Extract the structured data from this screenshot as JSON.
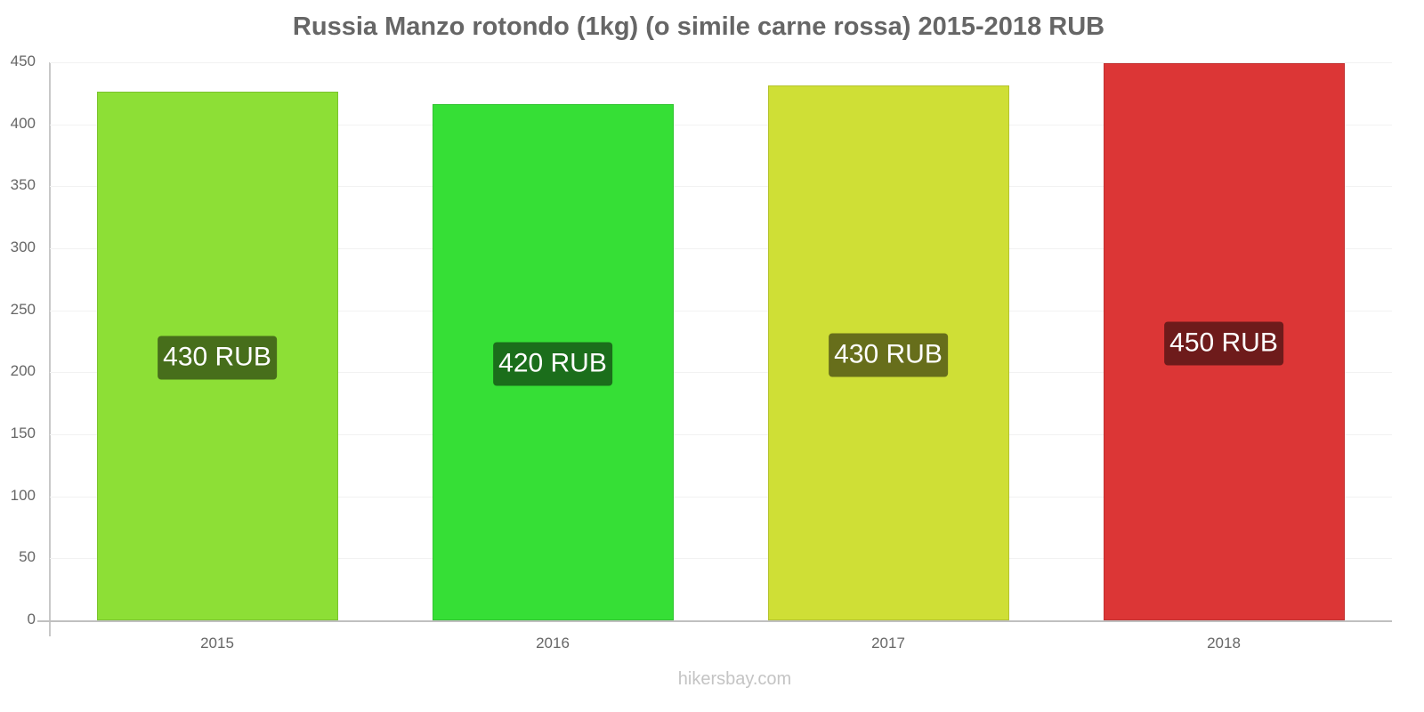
{
  "title": "Russia Manzo rotondo (1kg) (o simile carne rossa) 2015-2018 RUB",
  "footer": "hikersbay.com",
  "y_ticks": [
    "0",
    "50",
    "100",
    "150",
    "200",
    "250",
    "300",
    "350",
    "400",
    "450"
  ],
  "x_ticks": [
    "2015",
    "2016",
    "2017",
    "2018"
  ],
  "bars": [
    {
      "year": "2015",
      "label": "430 RUB",
      "color": "#8ddf36",
      "label_bg": "#476e1b"
    },
    {
      "year": "2016",
      "label": "420 RUB",
      "color": "#36df36",
      "label_bg": "#1b6e1b"
    },
    {
      "year": "2017",
      "label": "430 RUB",
      "color": "#cfdf36",
      "label_bg": "#676e1b"
    },
    {
      "year": "2018",
      "label": "450 RUB",
      "color": "#dc3636",
      "label_bg": "#6e1b1b"
    }
  ],
  "chart_data": {
    "type": "bar",
    "title": "Russia Manzo rotondo (1kg) (o simile carne rossa) 2015-2018 RUB",
    "categories": [
      "2015",
      "2016",
      "2017",
      "2018"
    ],
    "values": [
      426,
      416,
      431,
      449
    ],
    "value_source": "estimated from bar pixel heights against y-axis (0 at y=697px, 450 at y=70px); not printed on the chart",
    "data_labels": [
      "430 RUB",
      "420 RUB",
      "430 RUB",
      "450 RUB"
    ],
    "data_label_note": "labels as printed on the chart, rounded to nearest 10 RUB",
    "xlabel": "",
    "ylabel": "",
    "ylim": [
      0,
      450
    ],
    "y_ticks": [
      0,
      50,
      100,
      150,
      200,
      250,
      300,
      350,
      400,
      450
    ],
    "grid": true,
    "legend": null,
    "unit": "RUB",
    "colors": [
      "#8ddf36",
      "#36df36",
      "#cfdf36",
      "#dc3636"
    ]
  }
}
